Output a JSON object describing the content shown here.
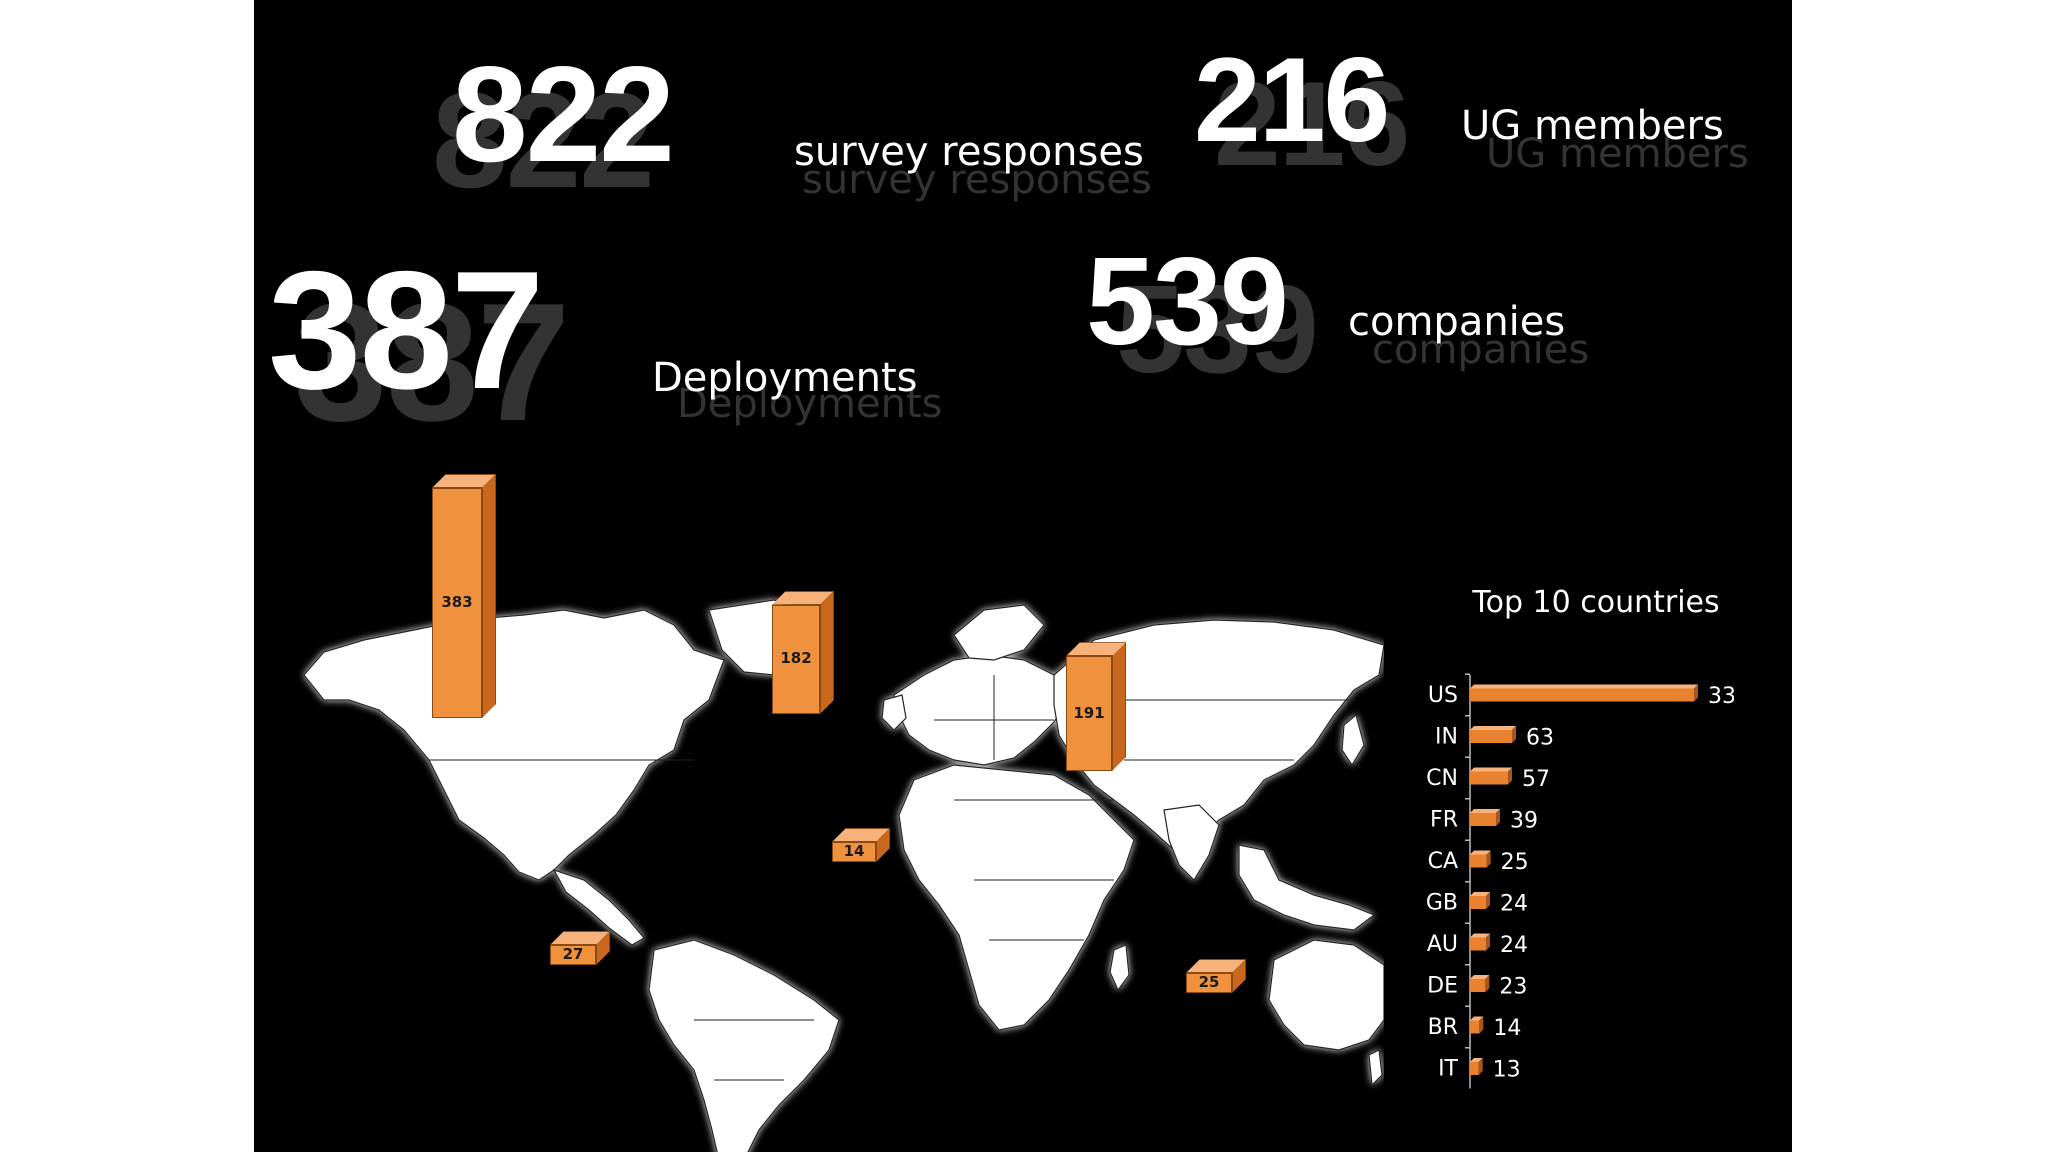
{
  "stats": {
    "survey": {
      "value": "822",
      "label": "survey responses"
    },
    "ug": {
      "value": "216",
      "label": "UG members"
    },
    "deployments": {
      "value": "387",
      "label": "Deployments"
    },
    "companies": {
      "value": "539",
      "label": "companies"
    }
  },
  "colors": {
    "bar": "#f0913e",
    "bar_side": "#c9681d",
    "bar_top": "#f6b27a",
    "background": "#000000",
    "map": "#ffffff"
  },
  "chart_data": [
    {
      "type": "bar",
      "title": "",
      "description_type": "3d bars on world map",
      "categories": [
        "North America",
        "Europe",
        "Asia",
        "Africa",
        "South America",
        "Oceania"
      ],
      "values": [
        383,
        182,
        191,
        14,
        27,
        25
      ]
    },
    {
      "type": "bar",
      "orientation": "horizontal",
      "title": "Top 10 countries",
      "categories": [
        "US",
        "IN",
        "CN",
        "FR",
        "CA",
        "GB",
        "AU",
        "DE",
        "BR",
        "IT"
      ],
      "values": [
        336,
        63,
        57,
        39,
        25,
        24,
        24,
        23,
        14,
        13
      ],
      "xlim": [
        0,
        336
      ]
    }
  ]
}
